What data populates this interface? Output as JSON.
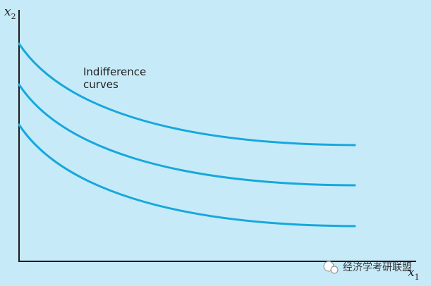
{
  "axes": {
    "y_label": {
      "base": "x",
      "sub": "2"
    },
    "x_label": {
      "base": "x",
      "sub": "1"
    }
  },
  "annotation": [
    "Indifference",
    "curves"
  ],
  "watermark": "经济学考研联盟"
}
